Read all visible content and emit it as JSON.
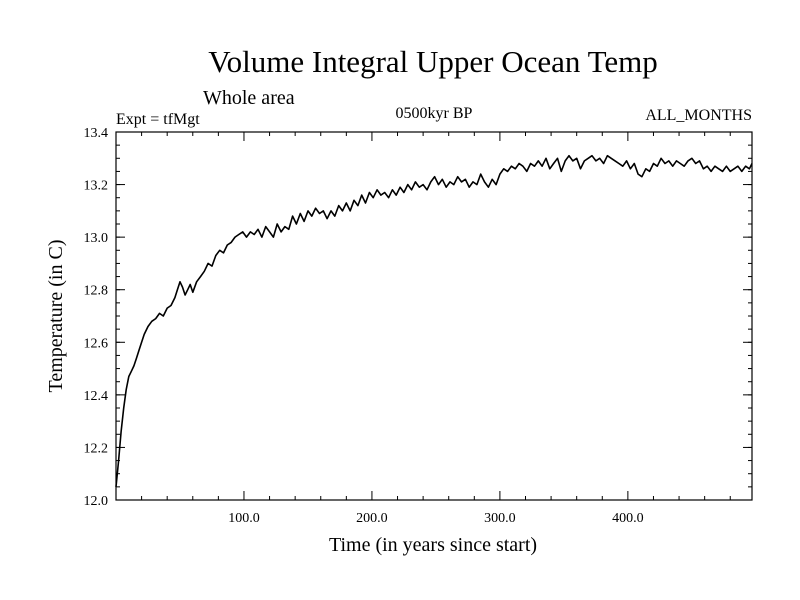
{
  "chart_data": {
    "type": "line",
    "title": "Volume Integral Upper Ocean Temp",
    "subtitle": "Whole area",
    "annotations": {
      "left": "Expt = tfMgt",
      "center": "0500kyr BP",
      "right": "ALL_MONTHS"
    },
    "xlabel": "Time (in years since start)",
    "ylabel": "Temperature (in C)",
    "xlim": [
      0,
      497
    ],
    "ylim": [
      12.0,
      13.4
    ],
    "x_ticks": [
      100,
      200,
      300,
      400
    ],
    "x_tick_labels": [
      "100.0",
      "200.0",
      "300.0",
      "400.0"
    ],
    "y_ticks": [
      12.0,
      12.2,
      12.4,
      12.6,
      12.8,
      13.0,
      13.2,
      13.4
    ],
    "y_tick_labels": [
      "12.0",
      "12.2",
      "12.4",
      "12.6",
      "12.8",
      "13.0",
      "13.2",
      "13.4"
    ],
    "grid": false,
    "series": [
      {
        "color": "#000000",
        "x": [
          0,
          2,
          4,
          6,
          8,
          10,
          12,
          14,
          16,
          18,
          20,
          22,
          25,
          28,
          31,
          34,
          37,
          40,
          43,
          46,
          48,
          50,
          52,
          54,
          56,
          58,
          60,
          63,
          66,
          69,
          72,
          75,
          78,
          81,
          84,
          87,
          90,
          93,
          96,
          99,
          102,
          105,
          108,
          111,
          114,
          117,
          120,
          123,
          126,
          129,
          132,
          135,
          138,
          141,
          144,
          147,
          150,
          153,
          156,
          159,
          162,
          165,
          168,
          171,
          174,
          177,
          180,
          183,
          186,
          189,
          192,
          195,
          198,
          201,
          204,
          207,
          210,
          213,
          216,
          219,
          222,
          225,
          228,
          231,
          234,
          237,
          240,
          243,
          246,
          249,
          252,
          255,
          258,
          261,
          264,
          267,
          270,
          273,
          276,
          279,
          282,
          285,
          288,
          291,
          294,
          297,
          300,
          303,
          306,
          309,
          312,
          315,
          318,
          321,
          324,
          327,
          330,
          333,
          336,
          339,
          342,
          345,
          348,
          351,
          354,
          357,
          360,
          363,
          366,
          369,
          372,
          375,
          378,
          381,
          384,
          387,
          390,
          393,
          396,
          399,
          402,
          405,
          408,
          411,
          414,
          417,
          420,
          423,
          426,
          429,
          432,
          435,
          438,
          441,
          444,
          447,
          450,
          453,
          456,
          459,
          462,
          465,
          468,
          471,
          474,
          477,
          480,
          483,
          486,
          489,
          492,
          495,
          497
        ],
        "y": [
          12.05,
          12.15,
          12.26,
          12.35,
          12.42,
          12.47,
          12.49,
          12.51,
          12.54,
          12.57,
          12.6,
          12.63,
          12.66,
          12.68,
          12.69,
          12.71,
          12.7,
          12.73,
          12.74,
          12.77,
          12.8,
          12.83,
          12.81,
          12.78,
          12.8,
          12.82,
          12.79,
          12.83,
          12.85,
          12.87,
          12.9,
          12.89,
          12.93,
          12.95,
          12.94,
          12.97,
          12.98,
          13.0,
          13.01,
          13.02,
          13.0,
          13.02,
          13.01,
          13.03,
          13.0,
          13.04,
          13.02,
          13.0,
          13.05,
          13.02,
          13.04,
          13.03,
          13.08,
          13.05,
          13.09,
          13.06,
          13.1,
          13.08,
          13.11,
          13.09,
          13.1,
          13.07,
          13.1,
          13.08,
          13.12,
          13.1,
          13.13,
          13.1,
          13.14,
          13.12,
          13.16,
          13.13,
          13.17,
          13.15,
          13.18,
          13.16,
          13.17,
          13.15,
          13.18,
          13.16,
          13.19,
          13.17,
          13.2,
          13.18,
          13.21,
          13.19,
          13.2,
          13.18,
          13.21,
          13.23,
          13.2,
          13.22,
          13.19,
          13.21,
          13.2,
          13.23,
          13.21,
          13.22,
          13.19,
          13.21,
          13.2,
          13.24,
          13.21,
          13.19,
          13.22,
          13.2,
          13.24,
          13.26,
          13.25,
          13.27,
          13.26,
          13.28,
          13.27,
          13.25,
          13.28,
          13.27,
          13.29,
          13.27,
          13.3,
          13.26,
          13.28,
          13.3,
          13.25,
          13.29,
          13.31,
          13.29,
          13.3,
          13.26,
          13.29,
          13.3,
          13.31,
          13.29,
          13.3,
          13.28,
          13.31,
          13.3,
          13.29,
          13.28,
          13.27,
          13.29,
          13.26,
          13.28,
          13.24,
          13.23,
          13.26,
          13.25,
          13.28,
          13.27,
          13.3,
          13.28,
          13.29,
          13.27,
          13.29,
          13.28,
          13.27,
          13.29,
          13.3,
          13.28,
          13.29,
          13.26,
          13.27,
          13.25,
          13.27,
          13.26,
          13.25,
          13.27,
          13.25,
          13.26,
          13.27,
          13.25,
          13.27,
          13.26,
          13.28
        ]
      }
    ]
  }
}
